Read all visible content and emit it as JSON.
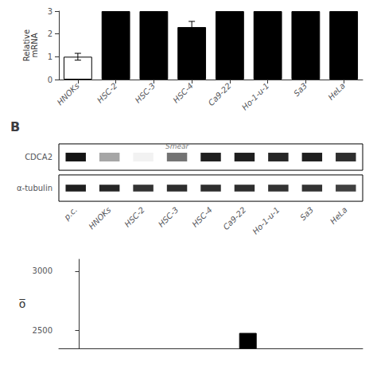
{
  "chart_data": [
    {
      "type": "bar",
      "categories": [
        "HNOKs",
        "HSC-2",
        "HSC-3",
        "HSC-4",
        "Ca9-22",
        "Ho-1-u-1",
        "Sa3",
        "HeLa"
      ],
      "values": [
        1.0,
        3.0,
        3.0,
        2.3,
        3.0,
        3.0,
        3.0,
        3.0
      ],
      "errors": [
        0.15,
        0.0,
        0.0,
        0.25,
        0.0,
        0.0,
        0.0,
        0.0
      ],
      "colors": [
        "white",
        "black",
        "black",
        "black",
        "black",
        "black",
        "black",
        "black"
      ],
      "y_label": "Relative\nmRNA",
      "ylim": [
        0,
        3
      ],
      "yticks": [
        0,
        1,
        2,
        3
      ],
      "grid": false
    },
    {
      "type": "heatmap",
      "title": "B",
      "categories": [
        "p.c.",
        "HNOKs",
        "HSC-2",
        "HSC-3",
        "HSC-4",
        "Ca9-22",
        "Ho-1-u-1",
        "Sa3",
        "HeLa"
      ],
      "rows": [
        "CDCA2",
        "α-tubulin"
      ],
      "values": [
        [
          0.92,
          0.35,
          0.05,
          0.55,
          0.88,
          0.88,
          0.85,
          0.88,
          0.82
        ],
        [
          0.88,
          0.85,
          0.8,
          0.82,
          0.82,
          0.82,
          0.8,
          0.8,
          0.75
        ]
      ],
      "vlim": [
        0,
        1
      ],
      "annotations": [
        {
          "text": "Smear",
          "category": "HSC-3",
          "row": "CDCA2"
        }
      ]
    },
    {
      "type": "bar",
      "x": [
        5
      ],
      "values": [
        2480
      ],
      "color": "black",
      "xlim": [
        -0.6,
        8.4
      ],
      "ylim": [
        2350,
        3100
      ],
      "yticks": [
        2500,
        3000
      ],
      "y_label": "o̅",
      "tick_labels": "y",
      "grid": false
    }
  ]
}
